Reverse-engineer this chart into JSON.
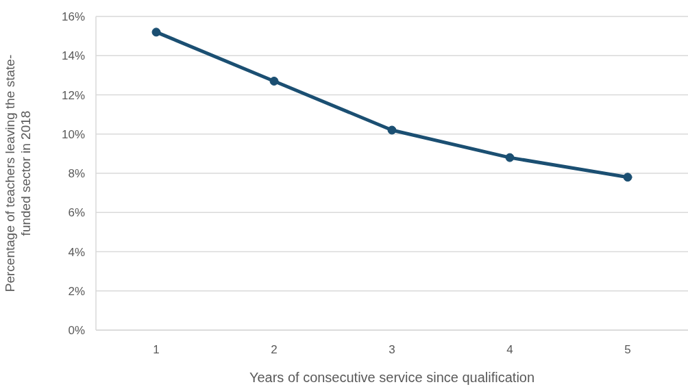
{
  "chart_data": {
    "type": "line",
    "xlabel": "Years of consecutive service since qualification",
    "ylabel": "Percentage of teachers leaving the state-\nfunded sector in 2018",
    "categories": [
      "1",
      "2",
      "3",
      "4",
      "5"
    ],
    "series": [
      {
        "color": "#1b4f72",
        "values": [
          15.2,
          12.7,
          10.2,
          8.8,
          7.8
        ]
      }
    ],
    "ylim": [
      0,
      16
    ],
    "yticks": [
      {
        "value": 0,
        "label": "0%"
      },
      {
        "value": 2,
        "label": "2%"
      },
      {
        "value": 4,
        "label": "4%"
      },
      {
        "value": 6,
        "label": "6%"
      },
      {
        "value": 8,
        "label": "8%"
      },
      {
        "value": 10,
        "label": "10%"
      },
      {
        "value": 12,
        "label": "12%"
      },
      {
        "value": 14,
        "label": "14%"
      },
      {
        "value": 16,
        "label": "16%"
      }
    ],
    "grid": "y",
    "marker": "circle",
    "line_style": "solid",
    "legend": false
  }
}
